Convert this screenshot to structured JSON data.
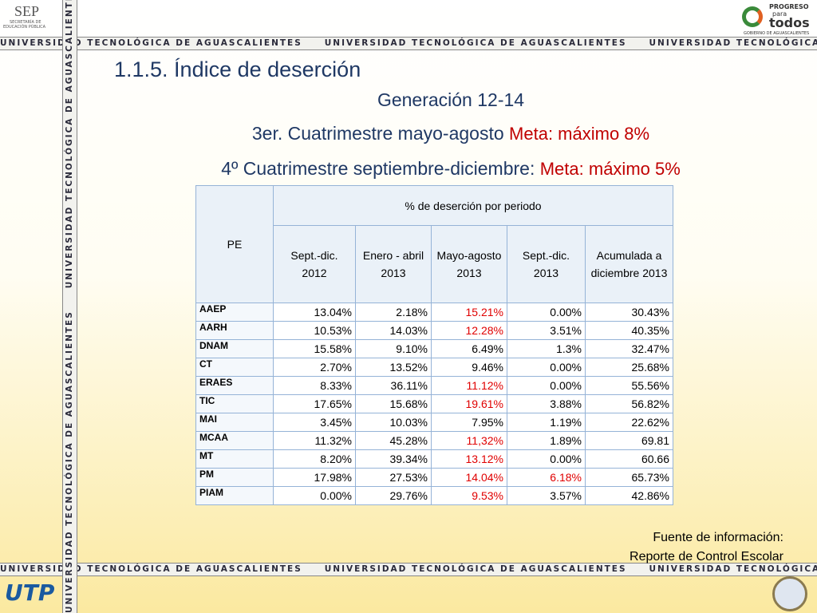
{
  "header": {
    "sep": "SEP",
    "sep_sub1": "SECRETARÍA DE",
    "sep_sub2": "EDUCACIÓN PÚBLICA",
    "progreso1": "PROGRESO",
    "progreso2": "para",
    "progreso3": "todos",
    "gobierno": "GOBIERNO DE AGUASCALIENTES"
  },
  "banner": "UNIVERSIDAD TECNOLÓGICA DE AGUASCALIENTES",
  "title": "1.1.5.  Índice de deserción",
  "subtitle": "Generación 12-14",
  "line1": {
    "text": "3er. Cuatrimestre mayo-agosto",
    "goal": "Meta: máximo 8%"
  },
  "line2": {
    "text": "4º Cuatrimestre septiembre-diciembre:",
    "goal": "Meta: máximo 5%"
  },
  "table": {
    "pe_header": "PE",
    "group_header": "% de deserción por periodo",
    "columns": [
      "Sept.-dic. 2012",
      "Enero - abril 2013",
      "Mayo-agosto 2013",
      "Sept.-dic. 2013",
      "Acumulada a diciembre 2013"
    ],
    "highlight_color": "#e00000",
    "rows": [
      {
        "pe": "AAEP",
        "values": [
          "13.04%",
          "2.18%",
          "15.21%",
          "0.00%",
          "30.43%"
        ],
        "highlight": [
          2
        ]
      },
      {
        "pe": "AARH",
        "values": [
          "10.53%",
          "14.03%",
          "12.28%",
          "3.51%",
          "40.35%"
        ],
        "highlight": [
          2
        ]
      },
      {
        "pe": "DNAM",
        "values": [
          "15.58%",
          "9.10%",
          "6.49%",
          "1.3%",
          "32.47%"
        ],
        "highlight": []
      },
      {
        "pe": "CT",
        "values": [
          "2.70%",
          "13.52%",
          "9.46%",
          "0.00%",
          "25.68%"
        ],
        "highlight": []
      },
      {
        "pe": "ERAES",
        "values": [
          "8.33%",
          "36.11%",
          "11.12%",
          "0.00%",
          "55.56%"
        ],
        "highlight": [
          2
        ]
      },
      {
        "pe": "TIC",
        "values": [
          "17.65%",
          "15.68%",
          "19.61%",
          "3.88%",
          "56.82%"
        ],
        "highlight": [
          2
        ]
      },
      {
        "pe": "MAI",
        "values": [
          "3.45%",
          "10.03%",
          "7.95%",
          "1.19%",
          "22.62%"
        ],
        "highlight": []
      },
      {
        "pe": "MCAA",
        "values": [
          "11.32%",
          "45.28%",
          "11,32%",
          "1.89%",
          "69.81"
        ],
        "highlight": [
          2
        ]
      },
      {
        "pe": "MT",
        "values": [
          "8.20%",
          "39.34%",
          "13.12%",
          "0.00%",
          "60.66"
        ],
        "highlight": [
          2
        ]
      },
      {
        "pe": "PM",
        "values": [
          "17.98%",
          "27.53%",
          "14.04%",
          "6.18%",
          "65.73%"
        ],
        "highlight": [
          2,
          3
        ]
      },
      {
        "pe": "PIAM",
        "values": [
          "0.00%",
          "29.76%",
          "9.53%",
          "3.57%",
          "42.86%"
        ],
        "highlight": [
          2
        ]
      }
    ]
  },
  "source": {
    "line1": "Fuente de información:",
    "line2": "Reporte de Control Escolar"
  },
  "footer": {
    "utp": "UTP"
  }
}
